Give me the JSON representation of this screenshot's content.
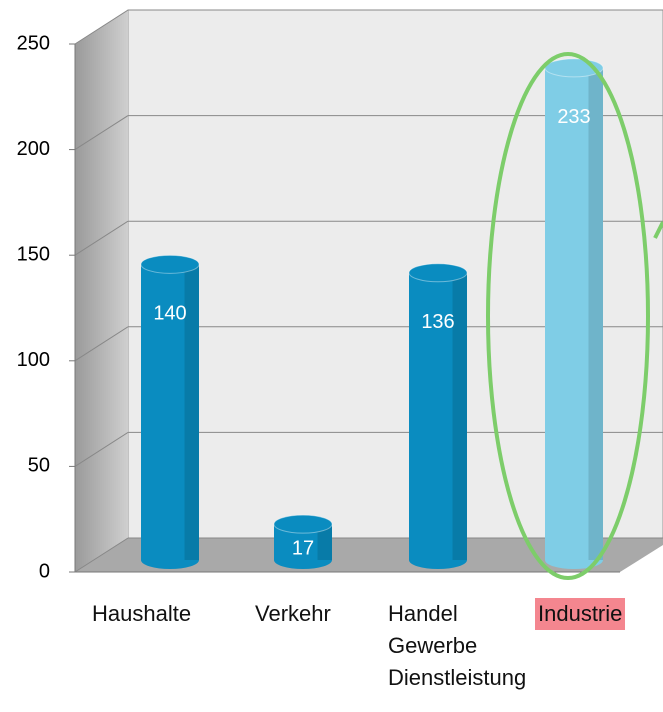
{
  "chart_data": {
    "type": "bar",
    "categories": [
      "Haushalte",
      "Verkehr",
      "Handel\nGewerbe\nDienstleistung",
      "Industrie"
    ],
    "values": [
      140,
      17,
      136,
      233
    ],
    "colors": [
      "#0a8cc0",
      "#0a8cc0",
      "#0a8cc0",
      "#7fcde6"
    ],
    "ylim": [
      0,
      250
    ],
    "yticks": [
      0,
      50,
      100,
      150,
      200,
      250
    ],
    "grid": true,
    "highlight": {
      "category": 3,
      "label_background": "#f4868f",
      "outline_color": "#7dcd6a"
    }
  }
}
